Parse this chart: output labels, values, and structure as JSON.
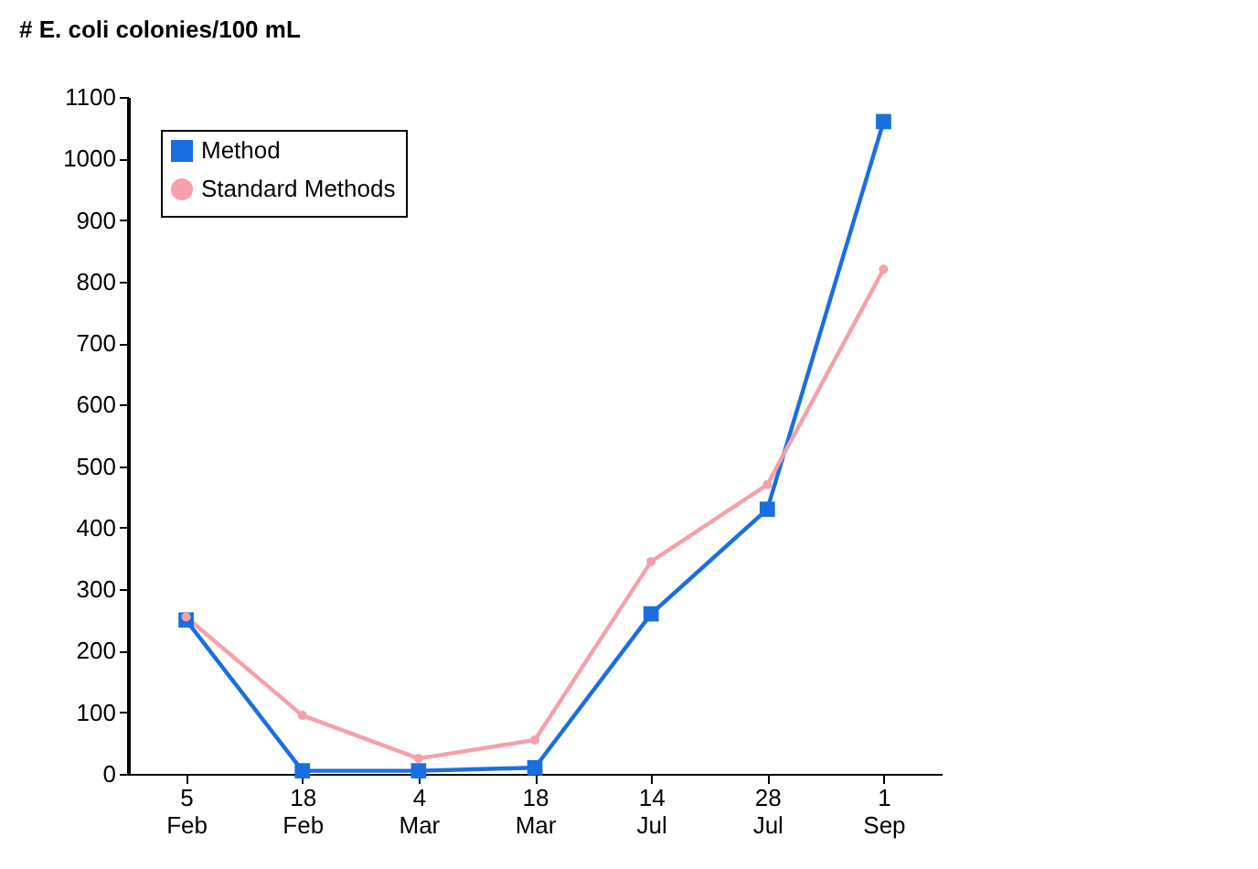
{
  "chart_data": {
    "type": "line",
    "ylabel": "# E. coli colonies/100 mL",
    "categories": [
      "5 Feb",
      "18 Feb",
      "4 Mar",
      "18 Mar",
      "14 Jul",
      "28 Jul",
      "1 Sep"
    ],
    "series": [
      {
        "name": "Method",
        "color": "#1a6fe0",
        "marker": "square",
        "values": [
          250,
          5,
          5,
          10,
          260,
          430,
          1060
        ]
      },
      {
        "name": "Standard Methods",
        "color": "#f5a0aa",
        "marker": "circle",
        "values": [
          255,
          95,
          25,
          55,
          345,
          470,
          820
        ]
      }
    ],
    "ylim": [
      0,
      1100
    ],
    "yticks": [
      0,
      100,
      200,
      300,
      400,
      500,
      600,
      700,
      800,
      900,
      1000,
      1100
    ],
    "grid": false,
    "legend": "top left"
  }
}
